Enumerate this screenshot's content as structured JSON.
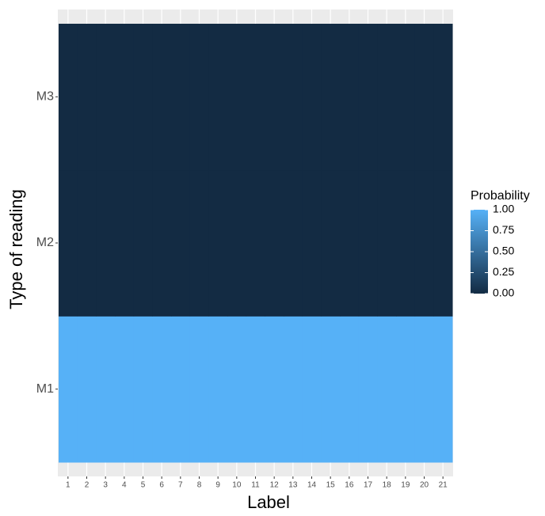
{
  "chart_data": {
    "type": "heatmap",
    "x_label": "Label",
    "y_label": "Type of reading",
    "x_categories": [
      "1",
      "2",
      "3",
      "4",
      "5",
      "6",
      "7",
      "8",
      "9",
      "10",
      "11",
      "12",
      "13",
      "14",
      "15",
      "16",
      "17",
      "18",
      "19",
      "20",
      "21"
    ],
    "y_categories": [
      "M1",
      "M2",
      "M3"
    ],
    "values": [
      [
        1,
        1,
        1,
        1,
        1,
        1,
        1,
        1,
        1,
        1,
        1,
        1,
        1,
        1,
        1,
        1,
        1,
        1,
        1,
        1,
        1
      ],
      [
        0,
        0,
        0,
        0,
        0,
        0,
        0,
        0,
        0,
        0,
        0,
        0,
        0,
        0,
        0,
        0,
        0,
        0,
        0,
        0,
        0
      ],
      [
        0,
        0,
        0,
        0,
        0,
        0,
        0,
        0,
        0,
        0,
        0,
        0,
        0,
        0,
        0,
        0,
        0,
        0,
        0,
        0,
        0
      ]
    ],
    "legend_title": "Probability",
    "color_low": "#132B43",
    "color_high": "#56B1F7",
    "zlim": [
      0,
      1
    ],
    "zticks": [
      {
        "value": 0,
        "label": "0.00"
      },
      {
        "value": 0.25,
        "label": "0.25"
      },
      {
        "value": 0.5,
        "label": "0.50"
      },
      {
        "value": 0.75,
        "label": "0.75"
      },
      {
        "value": 1,
        "label": "1.00"
      }
    ],
    "grid": true
  }
}
